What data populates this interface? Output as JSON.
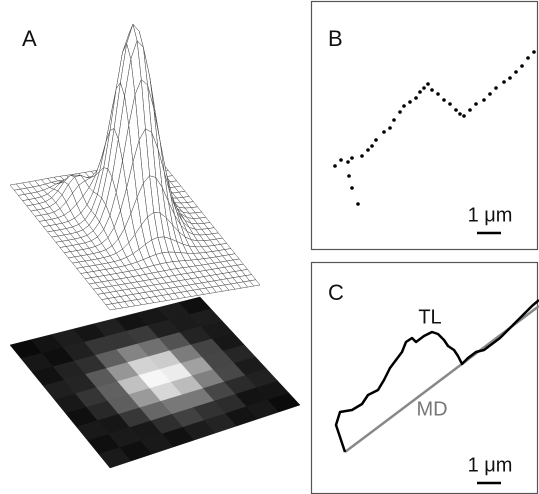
{
  "panels": {
    "a": {
      "label": "A"
    },
    "b": {
      "label": "B",
      "scale_bar": "1 μm"
    },
    "c": {
      "label": "C",
      "scale_bar": "1 μm",
      "trace_label": "TL",
      "line_label": "MD"
    }
  }
}
